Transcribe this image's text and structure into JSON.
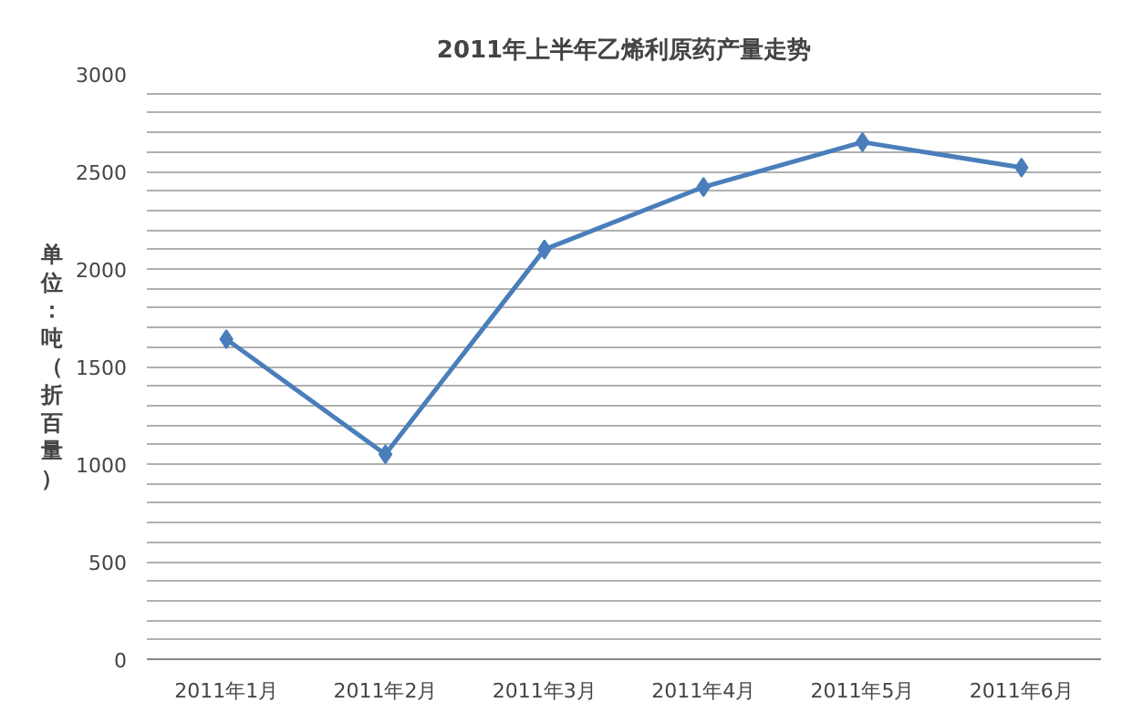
{
  "chart_data": {
    "type": "line",
    "title": "2011年上半年乙烯利原药产量走势",
    "ylabel": "单位：吨（折百量）",
    "categories": [
      "2011年1月",
      "2011年2月",
      "2011年3月",
      "2011年4月",
      "2011年5月",
      "2011年6月"
    ],
    "series": [
      {
        "color": "#4a7ebb",
        "values": [
          1640,
          1050,
          2100,
          2420,
          2650,
          2520
        ]
      }
    ],
    "ylim": [
      0,
      3000
    ],
    "yticks": [
      0,
      {
        "value": 100,
        "label": null
      },
      {
        "value": 200,
        "label": null
      },
      {
        "value": 300,
        "label": null
      },
      {
        "value": 400,
        "label": null
      },
      500,
      {
        "value": 600,
        "label": null
      },
      {
        "value": 700,
        "label": null
      },
      {
        "value": 800,
        "label": null
      },
      {
        "value": 900,
        "label": null
      },
      1000,
      {
        "value": 1100,
        "label": null
      },
      {
        "value": 1200,
        "label": null
      },
      {
        "value": 1300,
        "label": null
      },
      {
        "value": 1400,
        "label": null
      },
      1500,
      {
        "value": 1600,
        "label": null
      },
      {
        "value": 1700,
        "label": null
      },
      {
        "value": 1800,
        "label": null
      },
      {
        "value": 1900,
        "label": null
      },
      2000,
      {
        "value": 2100,
        "label": null
      },
      {
        "value": 2200,
        "label": null
      },
      {
        "value": 2300,
        "label": null
      },
      {
        "value": 2400,
        "label": null
      },
      2500,
      {
        "value": 2600,
        "label": null
      },
      {
        "value": 2700,
        "label": null
      },
      {
        "value": 2800,
        "label": null
      },
      {
        "value": 2900,
        "label": null
      },
      3000
    ],
    "grid": "y",
    "marker": "diamond",
    "line_style": "solid"
  }
}
